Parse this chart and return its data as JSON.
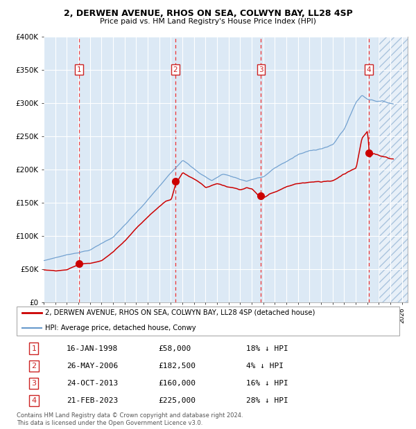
{
  "title1": "2, DERWEN AVENUE, RHOS ON SEA, COLWYN BAY, LL28 4SP",
  "title2": "Price paid vs. HM Land Registry's House Price Index (HPI)",
  "legend1": "2, DERWEN AVENUE, RHOS ON SEA, COLWYN BAY, LL28 4SP (detached house)",
  "legend2": "HPI: Average price, detached house, Conwy",
  "footer": "Contains HM Land Registry data © Crown copyright and database right 2024.\nThis data is licensed under the Open Government Licence v3.0.",
  "trans_years": [
    1998.04,
    2006.4,
    2013.81,
    2023.14
  ],
  "trans_prices": [
    58000,
    182500,
    160000,
    225000
  ],
  "trans_labels": [
    1,
    2,
    3,
    4
  ],
  "trans_dates": [
    "16-JAN-1998",
    "26-MAY-2006",
    "24-OCT-2013",
    "21-FEB-2023"
  ],
  "trans_pcts": [
    "18% ↓ HPI",
    "4% ↓ HPI",
    "16% ↓ HPI",
    "28% ↓ HPI"
  ],
  "trans_pricestr": [
    "£58,000",
    "£182,500",
    "£160,000",
    "£225,000"
  ],
  "ylim": [
    0,
    400000
  ],
  "xlim_start": 1995.0,
  "xlim_end": 2026.5,
  "bg_color": "#dce9f5",
  "grid_color": "#ffffff",
  "line_color_red": "#cc0000",
  "line_color_blue": "#6699cc",
  "dot_color": "#cc0000",
  "dashed_line_color": "#ee3333",
  "box_color": "#cc2222",
  "yticks": [
    0,
    50000,
    100000,
    150000,
    200000,
    250000,
    300000,
    350000,
    400000
  ],
  "ytick_labels": [
    "£0",
    "£50K",
    "£100K",
    "£150K",
    "£200K",
    "£250K",
    "£300K",
    "£350K",
    "£400K"
  ],
  "xticks": [
    1995,
    1996,
    1997,
    1998,
    1999,
    2000,
    2001,
    2002,
    2003,
    2004,
    2005,
    2006,
    2007,
    2008,
    2009,
    2010,
    2011,
    2012,
    2013,
    2014,
    2015,
    2016,
    2017,
    2018,
    2019,
    2020,
    2021,
    2022,
    2023,
    2024,
    2025,
    2026
  ],
  "hatch_start": 2024.0
}
